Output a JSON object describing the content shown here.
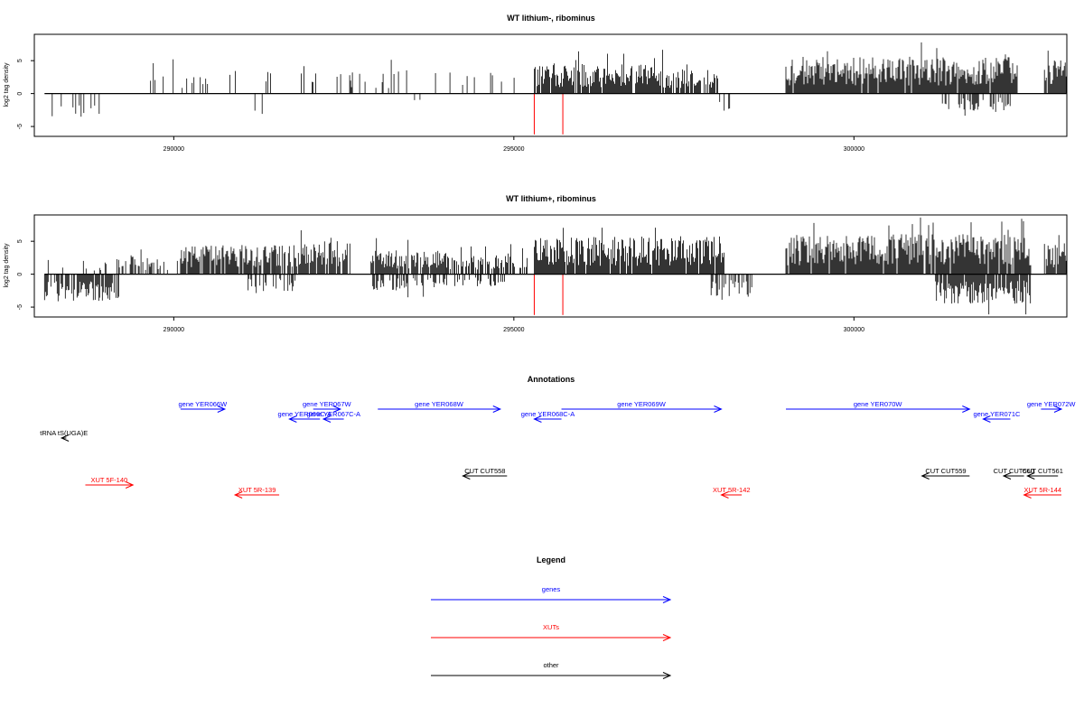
{
  "chart_data": [
    {
      "type": "bar",
      "title": "WT lithium-, ribominus",
      "ylabel": "log2 tag density",
      "xlabel": "",
      "xlim": [
        287950,
        303130
      ],
      "ylim": [
        -6.5,
        9
      ],
      "xticks": [
        290000,
        295000,
        300000
      ],
      "xtick_labels": [
        "290000",
        "295000",
        "300000"
      ],
      "yticks": [
        -5,
        0,
        5
      ],
      "ytick_labels": [
        "-5",
        "0",
        "5"
      ],
      "grid": false,
      "baseline_range": [
        288100,
        303130
      ],
      "plus_regions": [
        {
          "from": 289500,
          "to": 290800,
          "density": 0.12,
          "mean": 2.2
        },
        {
          "from": 290800,
          "to": 292400,
          "density": 0.1,
          "mean": 2.0
        },
        {
          "from": 292400,
          "to": 294300,
          "density": 0.12,
          "mean": 2.3
        },
        {
          "from": 294300,
          "to": 295200,
          "density": 0.1,
          "mean": 2.0
        },
        {
          "from": 295300,
          "to": 297200,
          "density": 0.9,
          "mean": 2.8
        },
        {
          "from": 297200,
          "to": 298000,
          "density": 0.75,
          "mean": 2.3
        },
        {
          "from": 299000,
          "to": 302400,
          "density": 0.95,
          "mean": 3.5
        },
        {
          "from": 302800,
          "to": 303130,
          "density": 0.9,
          "mean": 3.2
        }
      ],
      "minus_regions": [
        {
          "from": 288200,
          "to": 289100,
          "density": 0.12,
          "mean": 2.4
        },
        {
          "from": 291100,
          "to": 291300,
          "density": 0.2,
          "mean": 2.0
        },
        {
          "from": 293500,
          "to": 293700,
          "density": 0.15,
          "mean": 1.5
        },
        {
          "from": 298000,
          "to": 298200,
          "density": 0.3,
          "mean": 2.8
        },
        {
          "from": 301300,
          "to": 302300,
          "density": 0.45,
          "mean": 1.8
        }
      ],
      "markers": [
        {
          "x": 295300,
          "y": -6.2
        },
        {
          "x": 295720,
          "y": -6.2
        }
      ]
    },
    {
      "type": "bar",
      "title": "WT lithium+, ribominus",
      "ylabel": "log2 tag density",
      "xlabel": "",
      "xlim": [
        287950,
        303130
      ],
      "ylim": [
        -6.5,
        9
      ],
      "xticks": [
        290000,
        295000,
        300000
      ],
      "xtick_labels": [
        "290000",
        "295000",
        "300000"
      ],
      "yticks": [
        -5,
        0,
        5
      ],
      "ytick_labels": [
        "-5",
        "0",
        "5"
      ],
      "grid": false,
      "baseline_range": [
        288100,
        303130
      ],
      "plus_regions": [
        {
          "from": 288100,
          "to": 289200,
          "density": 0.15,
          "mean": 1.5
        },
        {
          "from": 289200,
          "to": 289800,
          "density": 0.5,
          "mean": 1.8
        },
        {
          "from": 289800,
          "to": 290100,
          "density": 0.2,
          "mean": 1.5
        },
        {
          "from": 290100,
          "to": 291500,
          "density": 0.85,
          "mean": 2.8
        },
        {
          "from": 291500,
          "to": 292600,
          "density": 0.9,
          "mean": 3.2
        },
        {
          "from": 292900,
          "to": 294000,
          "density": 0.8,
          "mean": 2.3
        },
        {
          "from": 294000,
          "to": 295200,
          "density": 0.6,
          "mean": 2.0
        },
        {
          "from": 295300,
          "to": 298100,
          "density": 0.95,
          "mean": 3.6
        },
        {
          "from": 299000,
          "to": 302600,
          "density": 0.95,
          "mean": 3.8
        },
        {
          "from": 302800,
          "to": 303130,
          "density": 0.9,
          "mean": 3.0
        }
      ],
      "minus_regions": [
        {
          "from": 288100,
          "to": 289200,
          "density": 0.7,
          "mean": 2.6
        },
        {
          "from": 291000,
          "to": 291800,
          "density": 0.4,
          "mean": 1.8
        },
        {
          "from": 292900,
          "to": 294000,
          "density": 0.5,
          "mean": 1.6
        },
        {
          "from": 294000,
          "to": 294900,
          "density": 0.3,
          "mean": 1.3
        },
        {
          "from": 297900,
          "to": 298500,
          "density": 0.6,
          "mean": 2.5
        },
        {
          "from": 300200,
          "to": 300400,
          "density": 0.2,
          "mean": 1.0
        },
        {
          "from": 301200,
          "to": 302600,
          "density": 0.9,
          "mean": 2.8
        }
      ],
      "markers": [
        {
          "x": 295300,
          "y": -6.2
        },
        {
          "x": 295720,
          "y": -6.2
        }
      ]
    }
  ],
  "annotations": {
    "title": "Annotations",
    "xlim": [
      287950,
      303130
    ],
    "colors": {
      "genes": "#0000ff",
      "XUTs": "#ff0000",
      "other": "#000000"
    },
    "features": [
      {
        "label": "tRNA tS(UGA)E",
        "category": "other",
        "strand": "-",
        "start": 288350,
        "end": 288420,
        "row": 2
      },
      {
        "label": "gene YER066W",
        "category": "genes",
        "strand": "+",
        "start": 290100,
        "end": 290750,
        "row": 0
      },
      {
        "label": "gene YER067W",
        "category": "genes",
        "strand": "+",
        "start": 292050,
        "end": 292450,
        "row": 0
      },
      {
        "label": "gene YER066C-A",
        "category": "genes",
        "strand": "-",
        "start": 291700,
        "end": 292150,
        "row": 1
      },
      {
        "label": "gene YER067C-A",
        "category": "genes",
        "strand": "-",
        "start": 292200,
        "end": 292500,
        "row": 1
      },
      {
        "label": "gene YER068W",
        "category": "genes",
        "strand": "+",
        "start": 293000,
        "end": 294800,
        "row": 0
      },
      {
        "label": "gene YER069W",
        "category": "genes",
        "strand": "+",
        "start": 295700,
        "end": 298050,
        "row": 0
      },
      {
        "label": "gene YER068C-A",
        "category": "genes",
        "strand": "-",
        "start": 295300,
        "end": 295700,
        "row": 1
      },
      {
        "label": "gene YER070W",
        "category": "genes",
        "strand": "+",
        "start": 299000,
        "end": 301700,
        "row": 0
      },
      {
        "label": "gene YER071C",
        "category": "genes",
        "strand": "-",
        "start": 301900,
        "end": 302300,
        "row": 1
      },
      {
        "label": "gene YER072W",
        "category": "genes",
        "strand": "+",
        "start": 302750,
        "end": 303050,
        "row": 0
      },
      {
        "label": "CUT CUT558",
        "category": "other",
        "strand": "-",
        "start": 294250,
        "end": 294900,
        "row": 3
      },
      {
        "label": "CUT CUT559",
        "category": "other",
        "strand": "-",
        "start": 301000,
        "end": 301700,
        "row": 3
      },
      {
        "label": "CUT CUT560",
        "category": "other",
        "strand": "-",
        "start": 302200,
        "end": 302500,
        "row": 3
      },
      {
        "label": "CUT CUT561",
        "category": "other",
        "strand": "-",
        "start": 302550,
        "end": 303000,
        "row": 3
      },
      {
        "label": "XUT 5F-140",
        "category": "XUTs",
        "strand": "+",
        "start": 288700,
        "end": 289400,
        "row": 4
      },
      {
        "label": "XUT 5R-139",
        "category": "XUTs",
        "strand": "-",
        "start": 290900,
        "end": 291550,
        "row": 5
      },
      {
        "label": "XUT 5R-142",
        "category": "XUTs",
        "strand": "-",
        "start": 298050,
        "end": 298350,
        "row": 5
      },
      {
        "label": "XUT 5R-144",
        "category": "XUTs",
        "strand": "-",
        "start": 302500,
        "end": 303050,
        "row": 5
      }
    ]
  },
  "legend": {
    "title": "Legend",
    "items": [
      {
        "label": "genes",
        "color": "#0000ff"
      },
      {
        "label": "XUTs",
        "color": "#ff0000"
      },
      {
        "label": "other",
        "color": "#000000"
      }
    ]
  }
}
